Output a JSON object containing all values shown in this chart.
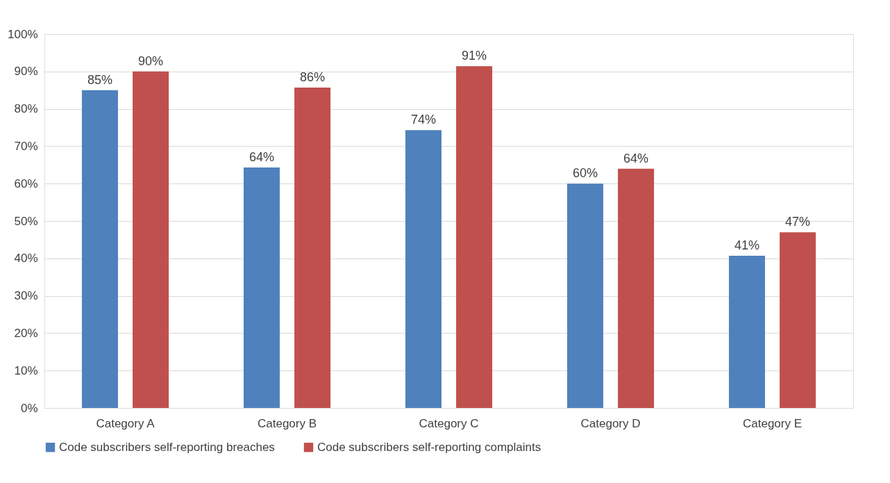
{
  "chart_data": {
    "type": "bar",
    "categories": [
      "Category A",
      "Category B",
      "Category C",
      "Category D",
      "Category E"
    ],
    "series": [
      {
        "name": "Code subscribers self-reporting breaches",
        "color": "#4f81bd",
        "values": [
          85,
          64.3,
          74.3,
          60,
          40.7
        ],
        "value_labels": [
          "85%",
          "64%",
          "74%",
          "60%",
          "41%"
        ]
      },
      {
        "name": "Code subscribers self-reporting complaints",
        "color": "#c0504d",
        "values": [
          90,
          85.7,
          91.4,
          64,
          47
        ],
        "value_labels": [
          "90%",
          "86%",
          "91%",
          "64%",
          "47%"
        ]
      }
    ],
    "ylim": [
      0,
      100
    ],
    "yticks": [
      {
        "value": 0,
        "label": "0%"
      },
      {
        "value": 10,
        "label": "10%"
      },
      {
        "value": 20,
        "label": "20%"
      },
      {
        "value": 30,
        "label": "30%"
      },
      {
        "value": 40,
        "label": "40%"
      },
      {
        "value": 50,
        "label": "50%"
      },
      {
        "value": 60,
        "label": "60%"
      },
      {
        "value": 70,
        "label": "70%"
      },
      {
        "value": 80,
        "label": "80%"
      },
      {
        "value": 90,
        "label": "90%"
      },
      {
        "value": 100,
        "label": "100%"
      }
    ],
    "grid": "y",
    "legend": "bottom"
  }
}
